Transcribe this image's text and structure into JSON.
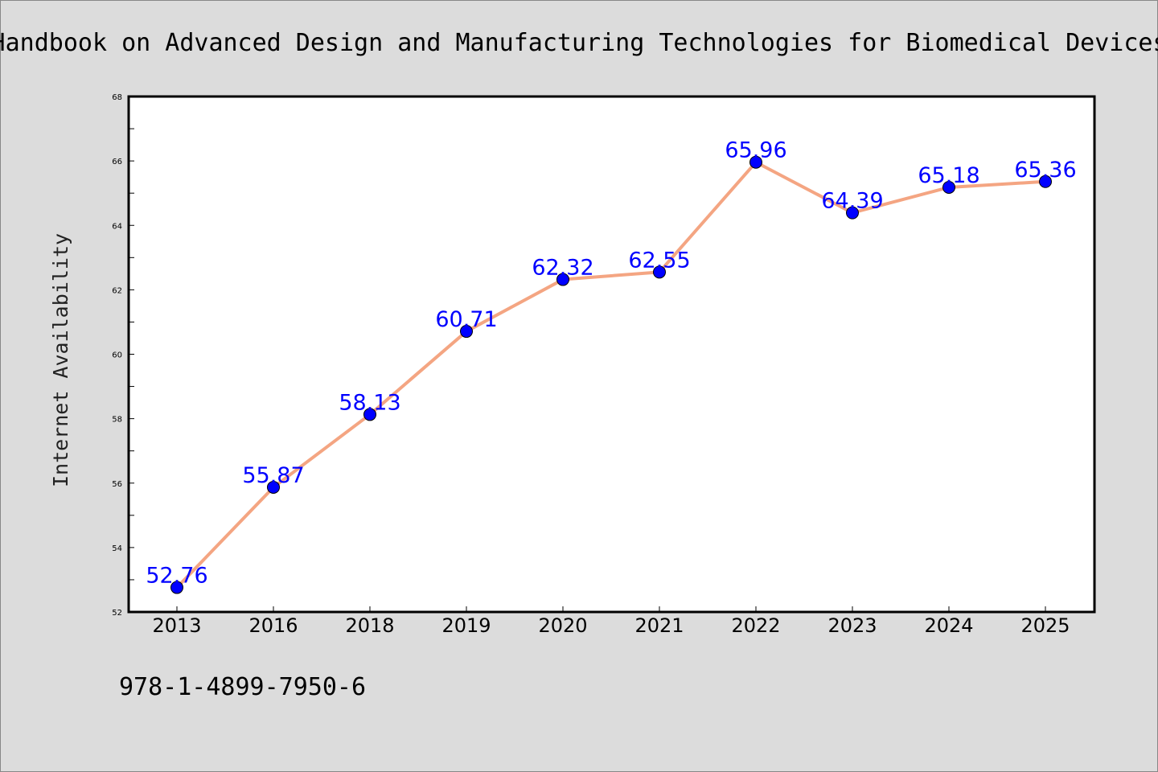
{
  "chart_data": {
    "type": "line",
    "title": "Handbook on Advanced Design and Manufacturing Technologies for Biomedical Devices",
    "xlabel": "",
    "ylabel": "Internet Availability",
    "categories": [
      "2013",
      "2016",
      "2018",
      "2019",
      "2020",
      "2021",
      "2022",
      "2023",
      "2024",
      "2025"
    ],
    "series": [
      {
        "values": [
          52.76,
          55.87,
          58.13,
          60.71,
          62.32,
          62.55,
          65.96,
          64.39,
          65.18,
          65.36
        ],
        "labels": [
          "52.76",
          "55.87",
          "58.13",
          "60.71",
          "62.32",
          "62.55",
          "65.96",
          "64.39",
          "65.18",
          "65.36"
        ]
      }
    ],
    "ylim": [
      52,
      68
    ],
    "yticks": [
      "52",
      "54",
      "56",
      "58",
      "60",
      "62",
      "64",
      "66",
      "68"
    ],
    "grid": false,
    "legend": "none",
    "line_color": "#f4a582",
    "marker_color": "#0000ff",
    "label_color": "#0000ff"
  },
  "footer": {
    "isbn": "978-1-4899-7950-6"
  },
  "colors": {
    "background": "#dcdcdc",
    "plot_background": "#ffffff"
  }
}
